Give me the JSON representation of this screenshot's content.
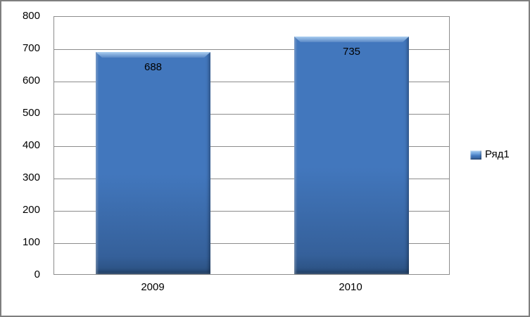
{
  "chart_data": {
    "type": "bar",
    "title": "",
    "xlabel": "",
    "ylabel": "",
    "categories": [
      "2009",
      "2010"
    ],
    "series": [
      {
        "name": "Ряд1",
        "values": [
          688,
          735
        ]
      }
    ],
    "data_labels_shown": true,
    "data_label_position": "inside-end",
    "ylim": [
      0,
      800
    ],
    "ytick_step": 100,
    "yticks": [
      0,
      100,
      200,
      300,
      400,
      500,
      600,
      700,
      800
    ],
    "grid": "horizontal",
    "legend_position": "right",
    "colors": {
      "bar_main": "#4277BD",
      "bar_highlight": "#A9CEF2",
      "bar_lower": "#35609A",
      "bar_bottom_edge": "#2A4F7E",
      "gridline": "#8C8C8C",
      "frame_border": "#7F7F7F",
      "text": "#000000"
    }
  }
}
